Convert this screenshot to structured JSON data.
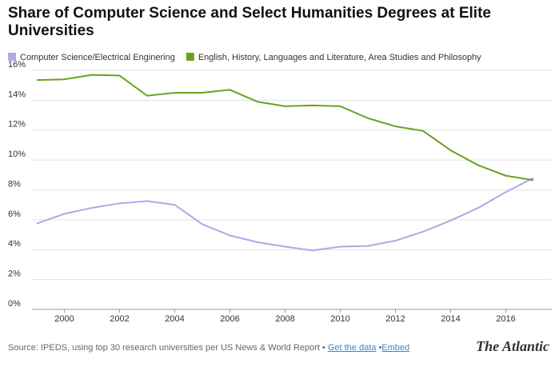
{
  "chart_data": {
    "type": "line",
    "title": "Share of Computer Science and Select Humanities Degrees at Elite Universities",
    "x": [
      1999,
      2000,
      2001,
      2002,
      2003,
      2004,
      2005,
      2006,
      2007,
      2008,
      2009,
      2010,
      2011,
      2012,
      2013,
      2014,
      2015,
      2016,
      2017
    ],
    "series": [
      {
        "name": "Computer Science/Electrical Enginering",
        "color": "#b3a7e6",
        "values": [
          5.75,
          6.4,
          6.8,
          7.1,
          7.25,
          7.0,
          5.7,
          4.95,
          4.5,
          4.2,
          3.95,
          4.2,
          4.25,
          4.6,
          5.2,
          5.95,
          6.8,
          7.85,
          8.8
        ]
      },
      {
        "name": "English, History, Languages and Literature, Area Studies and Philosophy",
        "color": "#6aa121",
        "values": [
          15.35,
          15.4,
          15.7,
          15.65,
          14.3,
          14.5,
          14.5,
          14.7,
          13.9,
          13.6,
          13.65,
          13.6,
          12.8,
          12.25,
          11.95,
          10.65,
          9.65,
          8.95,
          8.65
        ]
      }
    ],
    "xlim": [
      1999,
      2017
    ],
    "xticks": [
      2000,
      2002,
      2004,
      2006,
      2008,
      2010,
      2012,
      2014,
      2016
    ],
    "ylim": [
      0,
      16
    ],
    "yticks": [
      {
        "value": 0,
        "label": "0%"
      },
      {
        "value": 2,
        "label": "2%"
      },
      {
        "value": 4,
        "label": "4%"
      },
      {
        "value": 6,
        "label": "6%"
      },
      {
        "value": 8,
        "label": "8%"
      },
      {
        "value": 10,
        "label": "10%"
      },
      {
        "value": 12,
        "label": "12%"
      },
      {
        "value": 14,
        "label": "14%"
      },
      {
        "value": 16,
        "label": "16%"
      }
    ],
    "grid": true
  },
  "footer": {
    "source": "Source: IPEDS, using top 30 research universities per US News & World Report •",
    "link1": "Get the data",
    "separator": "•",
    "link2": "Embed",
    "logo": "The Atlantic"
  }
}
